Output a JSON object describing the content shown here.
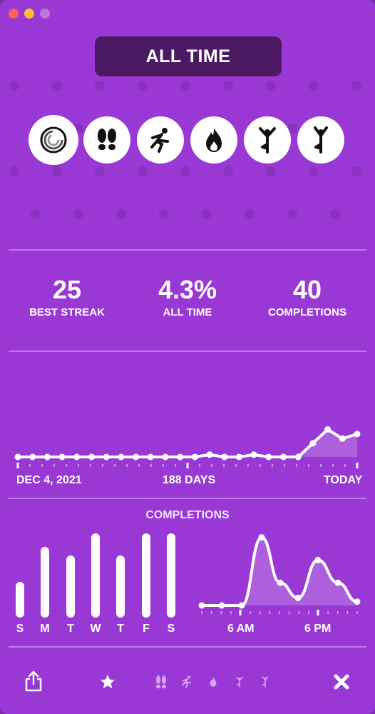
{
  "window": {
    "controls": [
      "close",
      "minimize",
      "maximize"
    ]
  },
  "header": {
    "title": "ALL TIME"
  },
  "goals": [
    {
      "icon": "activity-rings-icon",
      "selected": true
    },
    {
      "icon": "footprints-icon"
    },
    {
      "icon": "running-icon"
    },
    {
      "icon": "flame-icon"
    },
    {
      "icon": "yoga-pose-icon"
    },
    {
      "icon": "yoga-pose-icon"
    }
  ],
  "stats": {
    "streak": {
      "value": "25",
      "label": "BEST STREAK"
    },
    "rate": {
      "value": "4.3%",
      "label": "ALL TIME"
    },
    "completions": {
      "value": "40",
      "label": "COMPLETIONS"
    }
  },
  "history": {
    "start_label": "DEC 4, 2021",
    "span_label": "188 DAYS",
    "end_label": "TODAY"
  },
  "completions_section": {
    "title": "COMPLETIONS"
  },
  "chart_data": [
    {
      "type": "line",
      "title": "",
      "x_labels": [
        "DEC 4, 2021",
        "188 DAYS",
        "TODAY"
      ],
      "values": [
        0,
        0,
        0,
        0,
        0,
        0,
        0,
        0,
        0,
        0,
        0,
        0,
        0,
        0.5,
        0,
        0,
        0.5,
        0,
        0,
        0,
        3,
        6,
        4,
        5
      ],
      "ylim": [
        0,
        7
      ]
    },
    {
      "type": "bar",
      "title": "COMPLETIONS",
      "categories": [
        "S",
        "M",
        "T",
        "W",
        "T",
        "F",
        "S"
      ],
      "values": [
        4,
        8,
        7,
        9.5,
        7,
        9.5,
        9.5
      ],
      "ylim": [
        0,
        10
      ]
    },
    {
      "type": "area",
      "x_labels": [
        "6 AM",
        "6 PM"
      ],
      "values": [
        0,
        0,
        0,
        9,
        3,
        1,
        6,
        3,
        0.5
      ],
      "ylim": [
        0,
        10
      ]
    }
  ],
  "toolbar": {
    "share": "share-icon",
    "tabs": [
      "star-icon",
      "moon-icon",
      "footprints-icon",
      "running-icon",
      "flame-icon",
      "yoga-pose-icon",
      "yoga-pose-icon"
    ],
    "close": "close-icon"
  },
  "colors": {
    "background": "#9a38d6",
    "header_pill": "#4c1a63",
    "foreground": "#ffffff"
  }
}
